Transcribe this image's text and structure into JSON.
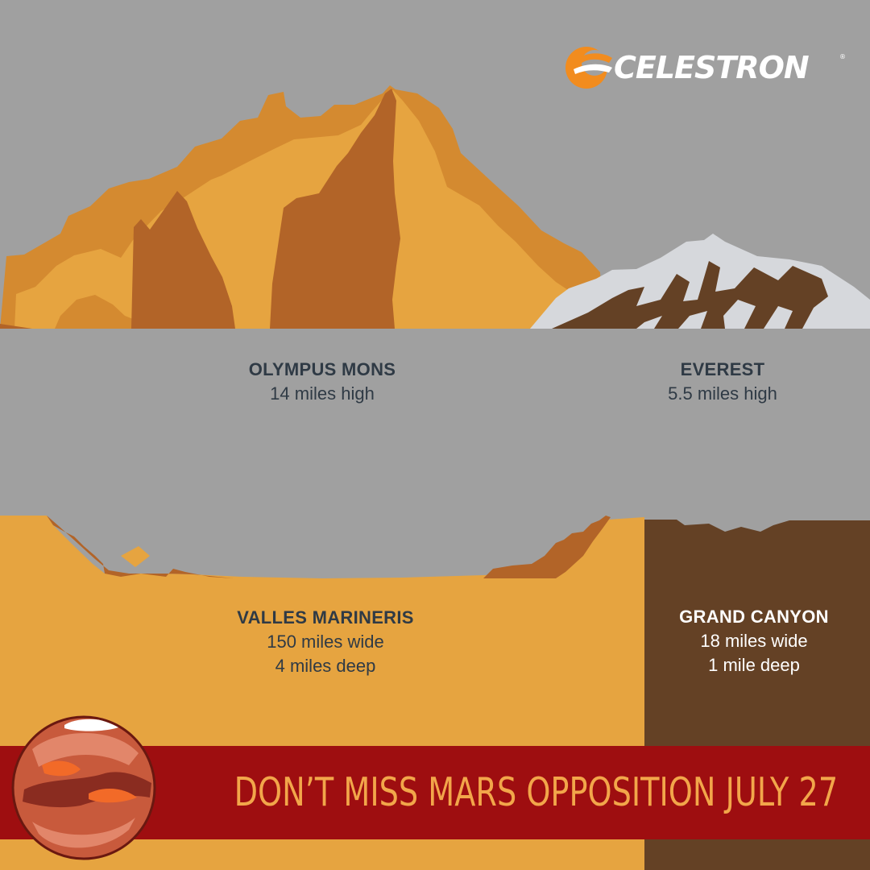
{
  "brand": {
    "name": "CELESTRON",
    "trademark": "®",
    "logo_icon": "celestron-swoosh-icon",
    "logo_color": "#f28c1e"
  },
  "features": {
    "olympus_mons": {
      "title": "OLYMPUS MONS",
      "detail": "14 miles high"
    },
    "everest": {
      "title": "EVEREST",
      "detail": "5.5 miles high"
    },
    "valles_marineris": {
      "title": "VALLES MARINERIS",
      "detail_1": "150 miles wide",
      "detail_2": "4 miles deep"
    },
    "grand_canyon": {
      "title": "GRAND CANYON",
      "detail_1": "18 miles wide",
      "detail_2": "1 mile deep"
    }
  },
  "banner": {
    "text": "DON’T MISS MARS OPPOSITION JULY 27",
    "icon": "mars-planet-icon"
  },
  "colors": {
    "background": "#a0a0a0",
    "mars_light": "#e6a440",
    "mars_mid": "#d48a30",
    "mars_dark": "#b26428",
    "earth_brown": "#644125",
    "snow": "#d6d8dc",
    "banner_red": "#9e0e10",
    "banner_text": "#f2a64a"
  }
}
